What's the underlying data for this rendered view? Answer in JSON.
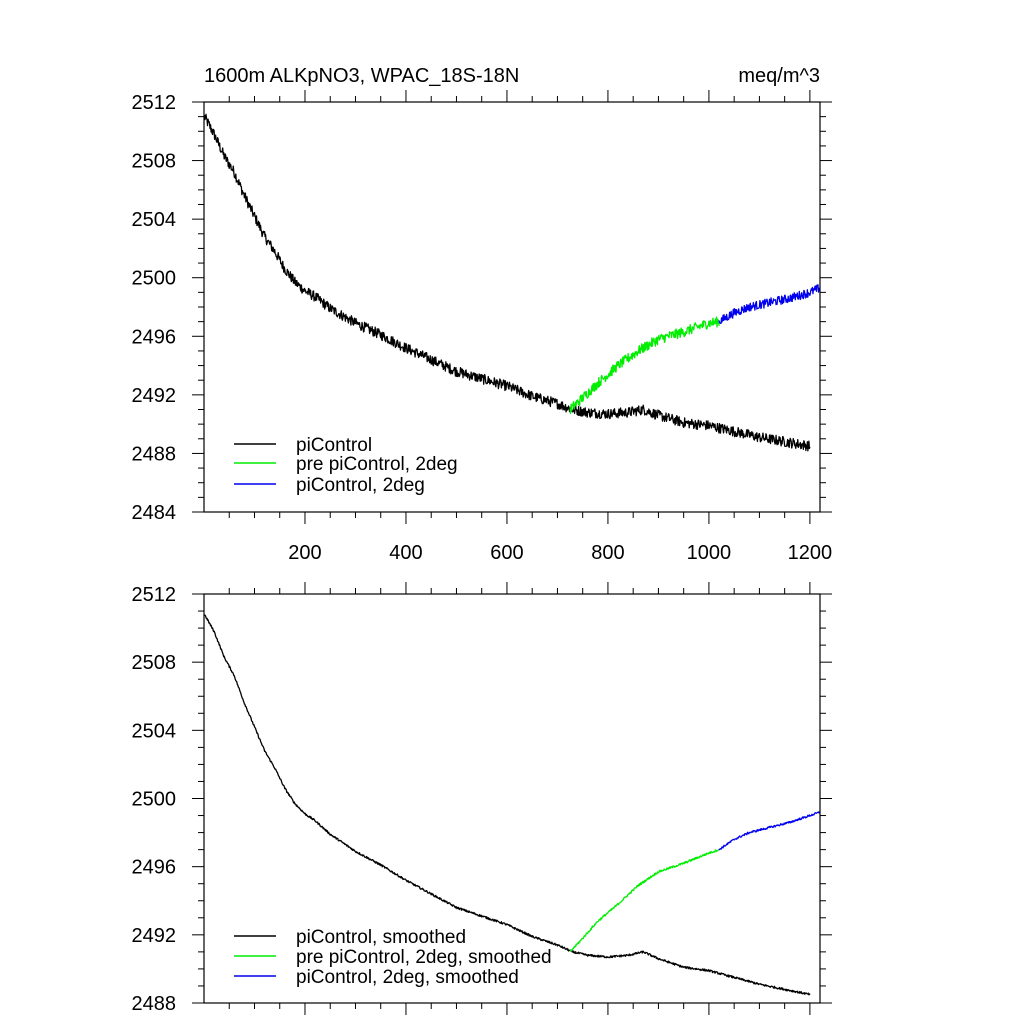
{
  "colors": {
    "black": "#000000",
    "green": "#00ee00",
    "blue": "#0000ee",
    "frame": "#000000"
  },
  "chart_data": [
    {
      "type": "line",
      "title_left": "1600m ALKpNO3, WPAC_18S-18N",
      "title_right": "meq/m^3",
      "xlim": [
        0,
        1220
      ],
      "ylim": [
        2484,
        2512
      ],
      "xticks": [
        200,
        400,
        600,
        800,
        1000,
        1200
      ],
      "xtick_labels": [
        "200",
        "400",
        "600",
        "800",
        "1000",
        "1200"
      ],
      "yticks": [
        2484,
        2488,
        2492,
        2496,
        2500,
        2504,
        2508,
        2512
      ],
      "ytick_labels": [
        "2484",
        "2488",
        "2492",
        "2496",
        "2500",
        "2504",
        "2508",
        "2512"
      ],
      "legend_placement": "bottom-left",
      "series": [
        {
          "name": "piControl",
          "color": "#000000",
          "noise": 0.35,
          "x": [
            1,
            20,
            40,
            60,
            80,
            100,
            120,
            140,
            160,
            180,
            200,
            220,
            250,
            300,
            350,
            400,
            450,
            500,
            550,
            600,
            650,
            700,
            730,
            760,
            800,
            840,
            870,
            900,
            950,
            1000,
            1050,
            1100,
            1150,
            1200
          ],
          "y": [
            2511.0,
            2509.8,
            2508.3,
            2507.2,
            2505.6,
            2504.2,
            2502.8,
            2501.8,
            2500.6,
            2499.7,
            2499.1,
            2498.7,
            2497.9,
            2496.9,
            2496.1,
            2495.2,
            2494.4,
            2493.6,
            2493.1,
            2492.6,
            2491.9,
            2491.4,
            2491.0,
            2490.8,
            2490.7,
            2490.8,
            2491.0,
            2490.6,
            2490.1,
            2489.9,
            2489.5,
            2489.1,
            2488.8,
            2488.5
          ]
        },
        {
          "name": "pre piControl, 2deg",
          "color": "#00ee00",
          "noise": 0.35,
          "x": [
            725,
            750,
            780,
            820,
            860,
            900,
            950,
            1000,
            1020
          ],
          "y": [
            2491.0,
            2491.8,
            2492.8,
            2494.0,
            2495.0,
            2495.8,
            2496.3,
            2496.9,
            2497.0
          ]
        },
        {
          "name": "piControl, 2deg",
          "color": "#0000ee",
          "noise": 0.3,
          "x": [
            1020,
            1050,
            1080,
            1120,
            1160,
            1200,
            1220
          ],
          "y": [
            2497.0,
            2497.6,
            2498.0,
            2498.3,
            2498.6,
            2499.0,
            2499.3
          ]
        }
      ]
    },
    {
      "type": "line",
      "xlim": [
        0,
        1220
      ],
      "ylim": [
        2488,
        2512
      ],
      "xticks": [
        200,
        400,
        600,
        800,
        1000,
        1200
      ],
      "yticks": [
        2488,
        2492,
        2496,
        2500,
        2504,
        2508,
        2512
      ],
      "ytick_labels": [
        "2488",
        "2492",
        "2496",
        "2500",
        "2504",
        "2508",
        "2512"
      ],
      "legend_placement": "bottom-left",
      "series": [
        {
          "name": "piControl, smoothed",
          "color": "#000000",
          "noise": 0.06,
          "x": [
            1,
            20,
            40,
            60,
            80,
            100,
            120,
            140,
            160,
            180,
            200,
            220,
            250,
            300,
            350,
            400,
            450,
            500,
            550,
            600,
            650,
            700,
            730,
            760,
            800,
            840,
            870,
            900,
            950,
            1000,
            1050,
            1100,
            1150,
            1200
          ],
          "y": [
            2510.8,
            2509.8,
            2508.3,
            2507.2,
            2505.6,
            2504.2,
            2502.8,
            2501.8,
            2500.6,
            2499.7,
            2499.1,
            2498.7,
            2497.9,
            2496.9,
            2496.1,
            2495.2,
            2494.4,
            2493.6,
            2493.1,
            2492.6,
            2491.9,
            2491.4,
            2491.0,
            2490.8,
            2490.7,
            2490.8,
            2491.0,
            2490.6,
            2490.1,
            2489.9,
            2489.5,
            2489.1,
            2488.8,
            2488.5
          ]
        },
        {
          "name": "pre piControl, 2deg, smoothed",
          "color": "#00ee00",
          "noise": 0.06,
          "x": [
            725,
            750,
            780,
            820,
            860,
            900,
            950,
            1000,
            1020
          ],
          "y": [
            2491.0,
            2491.8,
            2492.8,
            2493.8,
            2494.9,
            2495.7,
            2496.2,
            2496.8,
            2497.0
          ]
        },
        {
          "name": "piControl, 2deg, smoothed",
          "color": "#0000ee",
          "noise": 0.06,
          "x": [
            1020,
            1050,
            1080,
            1120,
            1160,
            1200,
            1220
          ],
          "y": [
            2497.0,
            2497.6,
            2498.0,
            2498.3,
            2498.6,
            2499.0,
            2499.2
          ]
        }
      ]
    }
  ]
}
